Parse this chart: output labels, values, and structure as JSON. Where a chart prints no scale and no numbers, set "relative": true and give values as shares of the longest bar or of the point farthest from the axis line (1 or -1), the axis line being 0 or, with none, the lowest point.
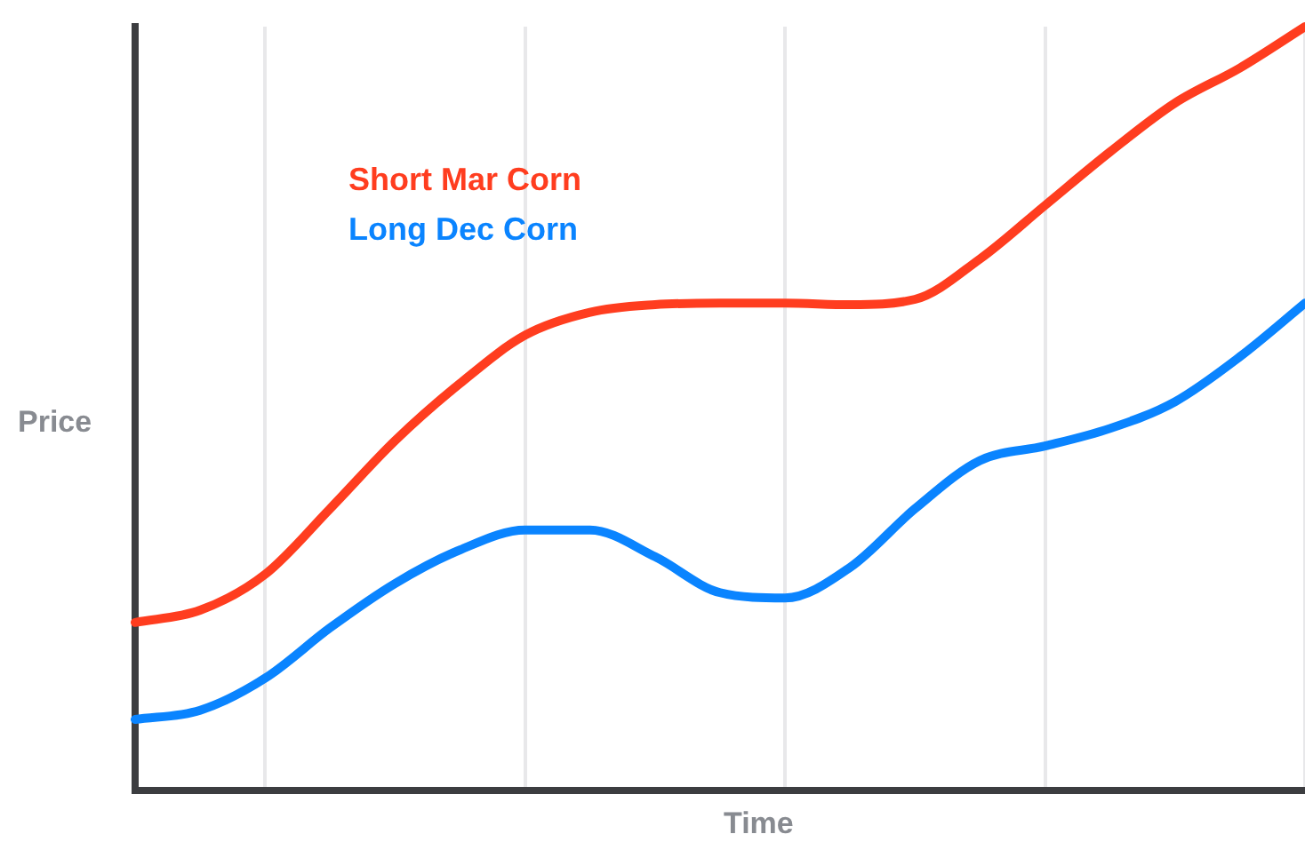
{
  "chart_data": {
    "type": "line",
    "relative": true,
    "xlabel": "Time",
    "ylabel": "Price",
    "grid": "x",
    "legend": "top left",
    "marker": "none",
    "line_style": "solid",
    "categories": [
      null,
      null,
      null,
      null,
      null,
      null,
      null,
      null,
      null,
      null,
      null,
      null,
      null,
      null,
      null,
      null,
      null,
      null,
      null
    ],
    "series": [
      {
        "name": "Short Mar Corn",
        "color": "#ff3d1f",
        "values": [
          0.22,
          0.236,
          0.283,
          0.369,
          0.458,
          0.533,
          0.596,
          0.626,
          0.636,
          0.638,
          0.638,
          0.636,
          0.643,
          0.696,
          0.766,
          0.836,
          0.9,
          0.946,
          1
        ]
      },
      {
        "name": "Long Dec Corn",
        "color": "#0a84ff",
        "values": [
          0.093,
          0.105,
          0.147,
          0.213,
          0.271,
          0.315,
          0.341,
          0.341,
          0.306,
          0.259,
          0.252,
          0.292,
          0.369,
          0.432,
          0.451,
          0.474,
          0.509,
          0.568,
          0.638
        ]
      }
    ]
  }
}
